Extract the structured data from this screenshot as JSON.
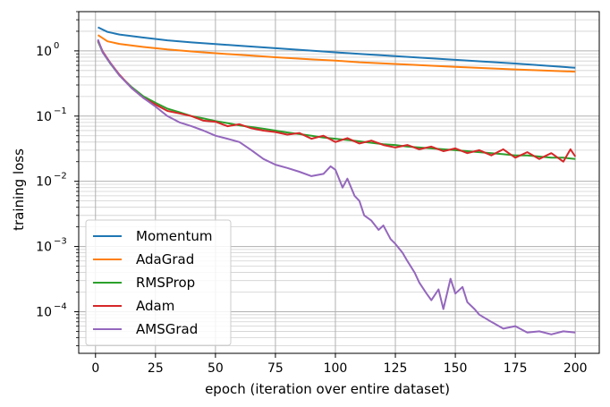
{
  "chart_data": {
    "type": "line",
    "title": "",
    "xlabel": "epoch (iteration over entire dataset)",
    "ylabel": "training loss",
    "xlim": [
      -7,
      210
    ],
    "ylim": [
      2.3e-05,
      4.0
    ],
    "yscale": "log",
    "grid": "major and minor, both axes",
    "legend_position": "lower-left",
    "xticks": [
      0,
      25,
      50,
      75,
      100,
      125,
      150,
      175,
      200
    ],
    "yticks": [
      {
        "value": 1,
        "base": "10",
        "exp": "0"
      },
      {
        "value": 0.1,
        "base": "10",
        "exp": "−1"
      },
      {
        "value": 0.01,
        "base": "10",
        "exp": "−2"
      },
      {
        "value": 0.001,
        "base": "10",
        "exp": "−3"
      },
      {
        "value": 0.0001,
        "base": "10",
        "exp": "−4"
      }
    ],
    "series": [
      {
        "name": "Momentum",
        "color": "#1f77b4",
        "x": [
          1,
          5,
          10,
          20,
          30,
          40,
          50,
          60,
          75,
          90,
          100,
          110,
          125,
          150,
          175,
          200
        ],
        "y": [
          2.3,
          1.95,
          1.78,
          1.6,
          1.45,
          1.35,
          1.27,
          1.2,
          1.1,
          1.01,
          0.95,
          0.9,
          0.83,
          0.73,
          0.64,
          0.55
        ]
      },
      {
        "name": "AdaGrad",
        "color": "#ff7f0e",
        "x": [
          1,
          5,
          10,
          20,
          30,
          40,
          50,
          60,
          75,
          90,
          100,
          110,
          125,
          150,
          175,
          200
        ],
        "y": [
          1.75,
          1.4,
          1.28,
          1.15,
          1.05,
          0.98,
          0.92,
          0.87,
          0.8,
          0.74,
          0.71,
          0.67,
          0.63,
          0.57,
          0.52,
          0.48
        ]
      },
      {
        "name": "RMSProp",
        "color": "#2ca02c",
        "x": [
          1,
          3,
          6,
          10,
          15,
          20,
          25,
          30,
          35,
          40,
          45,
          50,
          55,
          60,
          65,
          70,
          75,
          80,
          85,
          90,
          95,
          100,
          105,
          110,
          115,
          120,
          125,
          130,
          135,
          140,
          145,
          150,
          155,
          160,
          165,
          170,
          175,
          180,
          185,
          190,
          195,
          200
        ],
        "y": [
          1.4,
          0.95,
          0.65,
          0.42,
          0.28,
          0.2,
          0.16,
          0.13,
          0.115,
          0.1,
          0.092,
          0.084,
          0.078,
          0.072,
          0.068,
          0.064,
          0.06,
          0.056,
          0.053,
          0.05,
          0.047,
          0.045,
          0.043,
          0.041,
          0.039,
          0.037,
          0.036,
          0.034,
          0.033,
          0.032,
          0.031,
          0.03,
          0.029,
          0.028,
          0.027,
          0.026,
          0.025,
          0.025,
          0.024,
          0.023,
          0.023,
          0.022
        ]
      },
      {
        "name": "Adam",
        "color": "#d62728",
        "x": [
          1,
          3,
          6,
          10,
          15,
          20,
          25,
          30,
          35,
          40,
          45,
          50,
          55,
          60,
          65,
          70,
          75,
          80,
          85,
          90,
          95,
          100,
          105,
          110,
          115,
          120,
          125,
          130,
          135,
          140,
          145,
          150,
          155,
          160,
          165,
          170,
          175,
          180,
          185,
          190,
          195,
          198,
          200
        ],
        "y": [
          1.45,
          0.98,
          0.67,
          0.43,
          0.27,
          0.19,
          0.15,
          0.12,
          0.11,
          0.1,
          0.085,
          0.082,
          0.07,
          0.075,
          0.065,
          0.06,
          0.057,
          0.052,
          0.055,
          0.045,
          0.05,
          0.04,
          0.046,
          0.038,
          0.042,
          0.036,
          0.033,
          0.036,
          0.031,
          0.034,
          0.029,
          0.032,
          0.027,
          0.03,
          0.025,
          0.031,
          0.023,
          0.028,
          0.022,
          0.027,
          0.02,
          0.031,
          0.024
        ]
      },
      {
        "name": "AMSGrad",
        "color": "#9467bd",
        "x": [
          1,
          3,
          6,
          10,
          15,
          20,
          25,
          30,
          35,
          40,
          45,
          50,
          55,
          60,
          65,
          70,
          75,
          80,
          85,
          90,
          95,
          98,
          100,
          103,
          105,
          108,
          110,
          112,
          115,
          118,
          120,
          123,
          125,
          128,
          130,
          133,
          135,
          138,
          140,
          143,
          145,
          148,
          150,
          153,
          155,
          158,
          160,
          165,
          170,
          175,
          180,
          185,
          190,
          195,
          200
        ],
        "y": [
          1.5,
          0.95,
          0.66,
          0.42,
          0.27,
          0.19,
          0.14,
          0.1,
          0.08,
          0.07,
          0.06,
          0.05,
          0.045,
          0.04,
          0.03,
          0.022,
          0.018,
          0.016,
          0.014,
          0.012,
          0.013,
          0.017,
          0.015,
          0.008,
          0.011,
          0.006,
          0.005,
          0.003,
          0.0025,
          0.0018,
          0.0021,
          0.0013,
          0.0011,
          0.0008,
          0.0006,
          0.0004,
          0.00028,
          0.00019,
          0.00015,
          0.00022,
          0.00011,
          0.00032,
          0.00019,
          0.00024,
          0.00014,
          0.00011,
          9e-05,
          7e-05,
          5.5e-05,
          6e-05,
          4.8e-05,
          5e-05,
          4.5e-05,
          5e-05,
          4.8e-05
        ]
      }
    ]
  }
}
